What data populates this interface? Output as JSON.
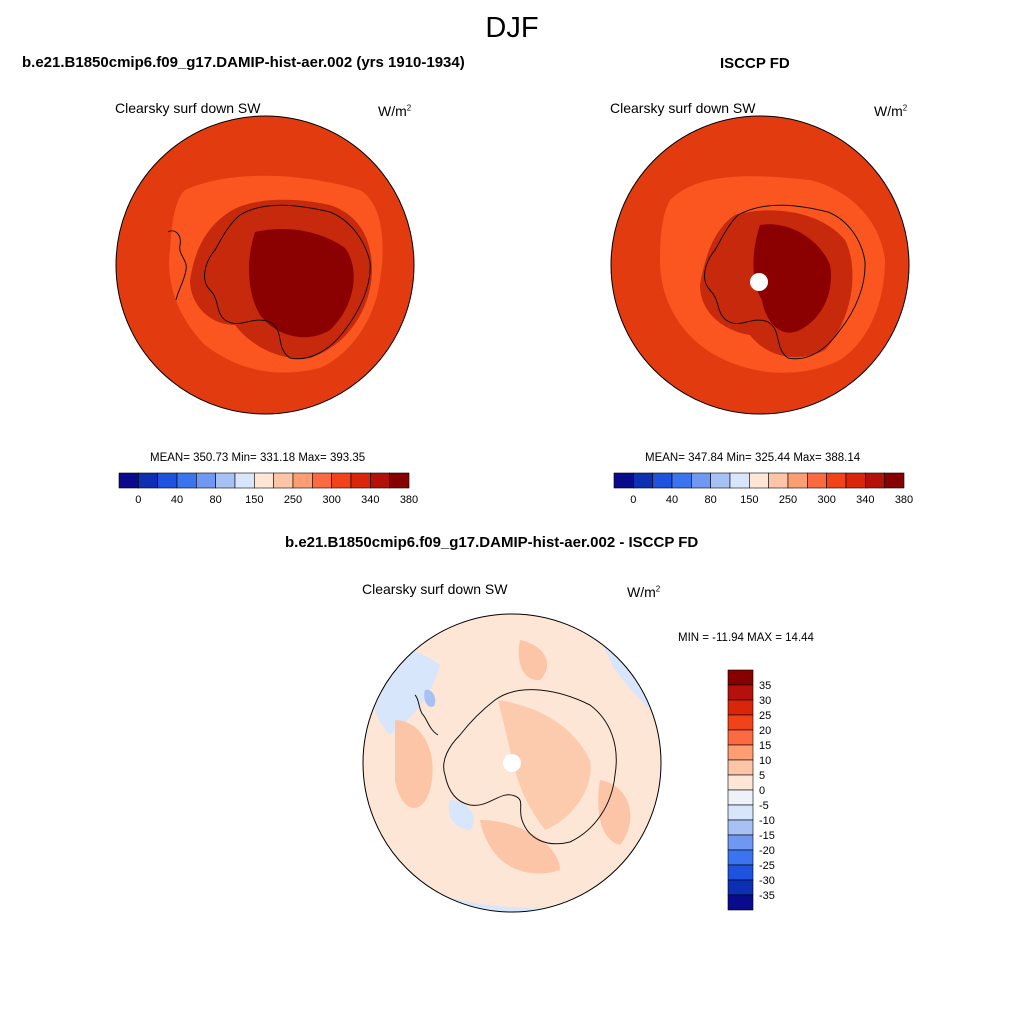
{
  "title": "DJF",
  "panels": [
    {
      "case_title": "b.e21.B1850cmip6.f09_g17.DAMIP-hist-aer.002 (yrs 1910-1934)",
      "variable": "Clearsky surf down SW",
      "units": "W/m",
      "units_sup": "2",
      "stats": "MEAN= 350.73  Min= 331.18  Max= 393.35"
    },
    {
      "case_title": "ISCCP FD",
      "variable": "Clearsky surf down SW",
      "units": "W/m",
      "units_sup": "2",
      "stats": "MEAN= 347.84  Min= 325.44  Max= 388.14"
    }
  ],
  "colorbar_abs": {
    "colors": [
      "#0a0a8c",
      "#0c2fb4",
      "#1d53de",
      "#3b74ef",
      "#7097f2",
      "#a7c1f5",
      "#d8e6fb",
      "#fde6d6",
      "#fcc5a7",
      "#fc9d74",
      "#fb6a40",
      "#f2421a",
      "#d9260b",
      "#b3110a",
      "#860000"
    ],
    "tick_labels": [
      "0",
      "40",
      "80",
      "150",
      "250",
      "300",
      "340",
      "380"
    ]
  },
  "diff_panel": {
    "title": "b.e21.B1850cmip6.f09_g17.DAMIP-hist-aer.002 - ISCCP FD",
    "variable": "Clearsky surf down SW",
    "units": "W/m",
    "units_sup": "2",
    "stats": "MIN = -11.94 MAX =  14.44"
  },
  "colorbar_diff": {
    "colors": [
      "#860000",
      "#b3110a",
      "#d9260b",
      "#f2421a",
      "#fb6a40",
      "#fc9d74",
      "#fcc5a7",
      "#fde6d6",
      "#eef2f8",
      "#d8e6fb",
      "#a7c1f5",
      "#7097f2",
      "#3b74ef",
      "#1d53de",
      "#0c2fb4",
      "#0a0a8c"
    ],
    "tick_labels": [
      "35",
      "30",
      "25",
      "20",
      "15",
      "10",
      "5",
      "0",
      "-5",
      "-10",
      "-15",
      "-20",
      "-25",
      "-30",
      "-35"
    ]
  }
}
